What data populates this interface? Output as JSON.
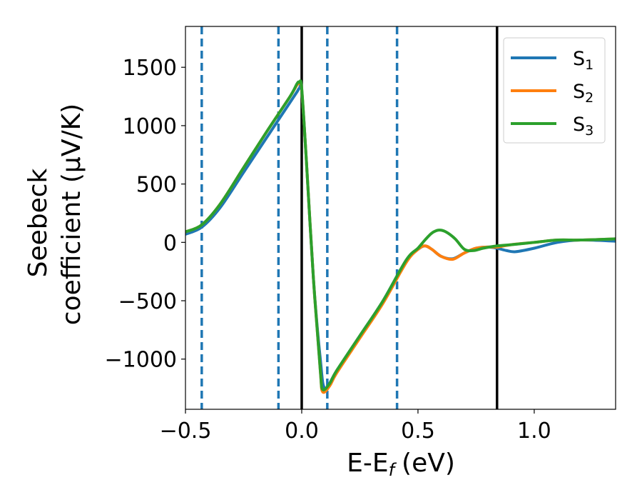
{
  "chart_data": {
    "type": "line",
    "xlabel": "E-E",
    "xlabel_sub": "f",
    "xlabel_unit": "(eV)",
    "ylabel_line1": "Seebeck",
    "ylabel_line2": "coefficient  (μV/K)",
    "xlim": [
      -0.5,
      1.35
    ],
    "ylim": [
      -1430,
      1850
    ],
    "xticks": [
      -0.5,
      0.0,
      0.5,
      1.0
    ],
    "xtick_labels": [
      "−0.5",
      "0.0",
      "0.5",
      "1.0"
    ],
    "yticks": [
      -1000,
      -500,
      0,
      500,
      1000,
      1500
    ],
    "ytick_labels": [
      "−1000",
      "−500",
      "0",
      "500",
      "1000",
      "1500"
    ],
    "vlines_solid": [
      0.0,
      0.84
    ],
    "vlines_dashed": [
      -0.43,
      -0.1,
      0.11,
      0.41
    ],
    "colors": {
      "s1": "#1f77b4",
      "s2": "#ff7f0e",
      "s3": "#2ca02c",
      "black": "#000000"
    },
    "legend": [
      {
        "base": "S",
        "sub": "1"
      },
      {
        "base": "S",
        "sub": "2"
      },
      {
        "base": "S",
        "sub": "3"
      }
    ],
    "series": [
      {
        "name": "S1",
        "x": [
          -0.5,
          -0.43,
          -0.35,
          -0.25,
          -0.15,
          -0.05,
          -0.02,
          -0.01,
          0.0,
          0.02,
          0.05,
          0.08,
          0.1,
          0.15,
          0.25,
          0.35,
          0.45,
          0.5,
          0.53,
          0.56,
          0.6,
          0.65,
          0.7,
          0.75,
          0.8,
          0.84,
          0.88,
          0.92,
          1.0,
          1.1,
          1.2,
          1.35
        ],
        "y": [
          70,
          130,
          300,
          600,
          900,
          1200,
          1290,
          1320,
          1300,
          700,
          -300,
          -1000,
          -1250,
          -1100,
          -800,
          -500,
          -150,
          -60,
          -30,
          -60,
          -120,
          -140,
          -90,
          -50,
          -40,
          -50,
          -70,
          -80,
          -50,
          0,
          20,
          10
        ]
      },
      {
        "name": "S2",
        "x": [
          -0.5,
          -0.43,
          -0.35,
          -0.25,
          -0.15,
          -0.05,
          -0.02,
          -0.01,
          0.0,
          0.02,
          0.05,
          0.08,
          0.09,
          0.12,
          0.15,
          0.25,
          0.35,
          0.45,
          0.5,
          0.53,
          0.56,
          0.6,
          0.65,
          0.7,
          0.75,
          0.8,
          0.84,
          0.9,
          1.0,
          1.1,
          1.2,
          1.35
        ],
        "y": [
          90,
          150,
          330,
          640,
          950,
          1250,
          1350,
          1360,
          1310,
          700,
          -300,
          -1100,
          -1280,
          -1230,
          -1120,
          -820,
          -520,
          -170,
          -60,
          -30,
          -60,
          -120,
          -145,
          -90,
          -50,
          -40,
          -40,
          -20,
          0,
          20,
          20,
          30
        ]
      },
      {
        "name": "S3",
        "x": [
          -0.5,
          -0.43,
          -0.35,
          -0.25,
          -0.15,
          -0.05,
          -0.02,
          -0.01,
          0.0,
          0.02,
          0.05,
          0.08,
          0.09,
          0.12,
          0.15,
          0.25,
          0.35,
          0.45,
          0.5,
          0.53,
          0.56,
          0.59,
          0.62,
          0.66,
          0.7,
          0.74,
          0.78,
          0.84,
          0.9,
          1.0,
          1.1,
          1.2,
          1.35
        ],
        "y": [
          90,
          150,
          330,
          640,
          950,
          1250,
          1360,
          1370,
          1320,
          700,
          -300,
          -1100,
          -1260,
          -1210,
          -1100,
          -800,
          -500,
          -150,
          -50,
          20,
          80,
          105,
          90,
          30,
          -60,
          -70,
          -50,
          -30,
          -20,
          0,
          20,
          20,
          30
        ]
      }
    ]
  }
}
